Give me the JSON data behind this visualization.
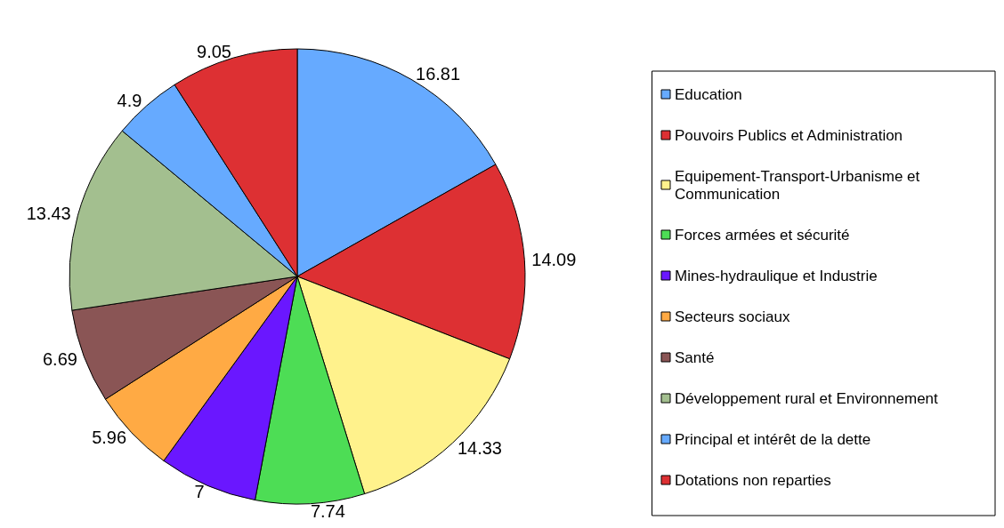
{
  "chart_data": {
    "type": "pie",
    "categories": [
      "Education",
      "Pouvoirs Publics et Administration",
      "Equipement-Transport-Urbanisme et Communication",
      "Forces armées et sécurité",
      "Mines-hydraulique et Industrie",
      "Secteurs sociaux",
      "Santé",
      "Développement rural et Environnement",
      "Principal et intérêt de la dette",
      "Dotations non reparties"
    ],
    "values": [
      16.81,
      14.09,
      14.33,
      7.74,
      7,
      5.96,
      6.69,
      13.43,
      4.9,
      9.05
    ],
    "colors": [
      "#66aaff",
      "#dd3033",
      "#fff28c",
      "#4ddd55",
      "#6a17ff",
      "#ffaa44",
      "#8a5555",
      "#a3bf8f",
      "#66aaff",
      "#dd3033"
    ],
    "data_labels": true,
    "legend": "right"
  }
}
